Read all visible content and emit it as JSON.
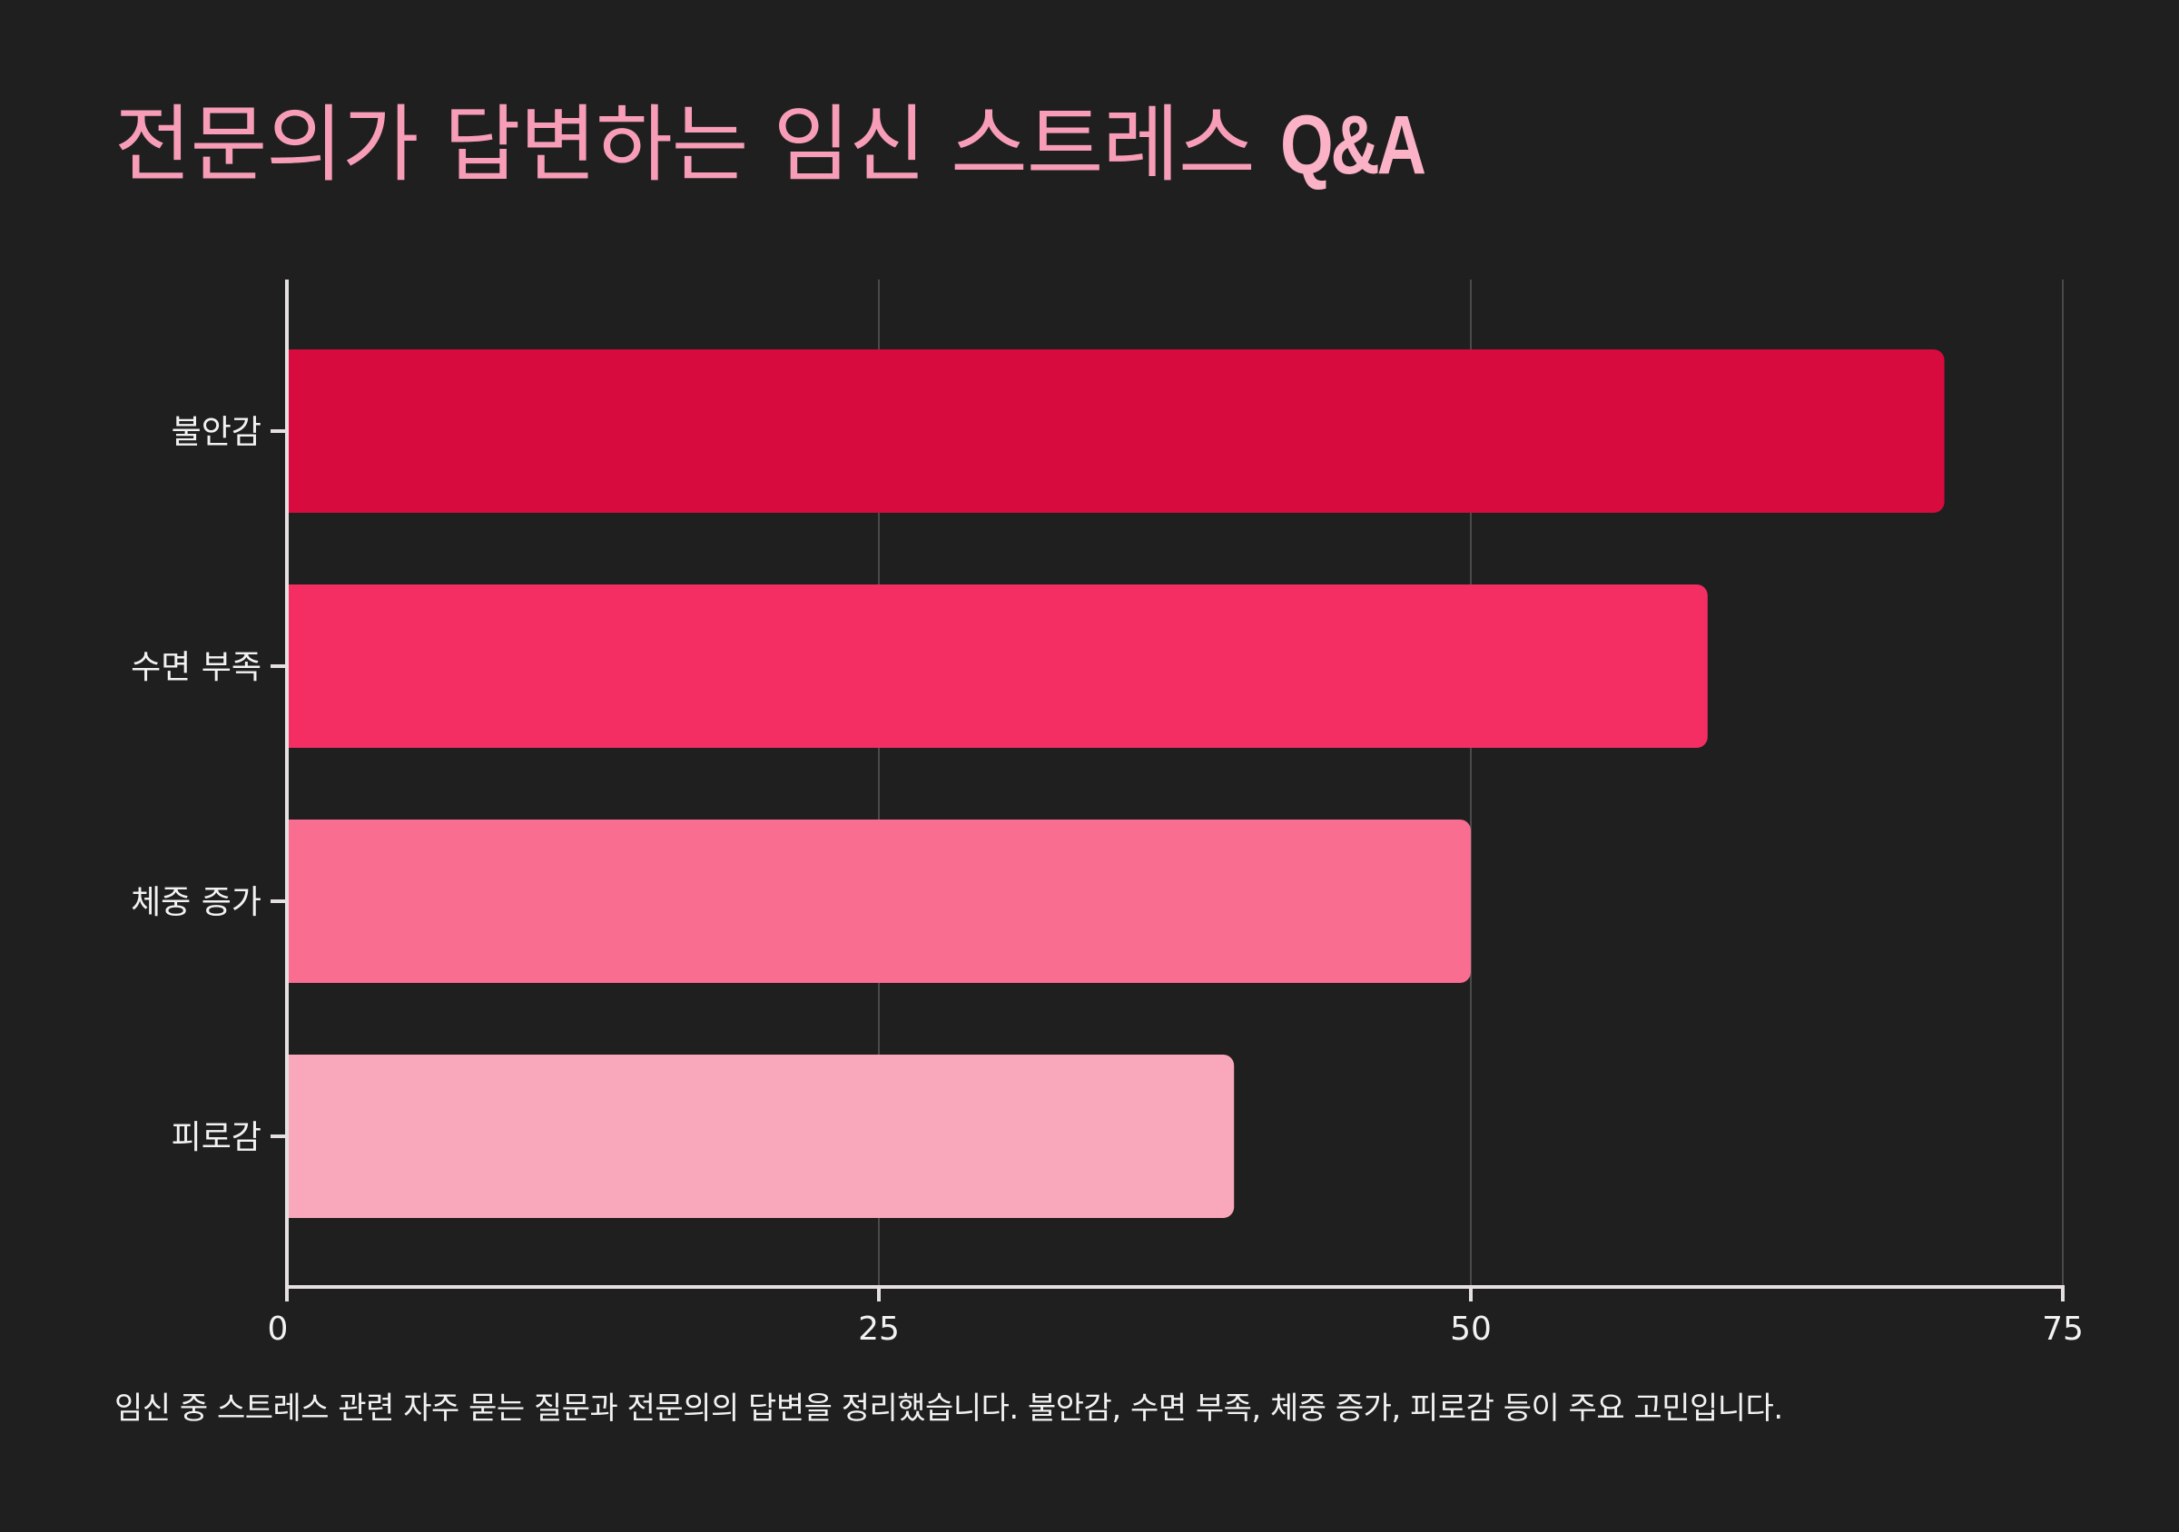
{
  "header": {
    "title_main": "전문의가 답변하는 임신 스트레스",
    "title_accent": "Q&A"
  },
  "caption": "임신 중 스트레스 관련 자주 묻는 질문과 전문의의 답변을 정리했습니다. 불안감, 수면 부족, 체중 증가, 피로감 등이 주요 고민입니다.",
  "colors": {
    "background": "#1f1f1f",
    "title": "#f79db7",
    "axis": "#e6dfe1",
    "grid": "#4a4a4a",
    "text": "#f2f2f2"
  },
  "chart_data": {
    "type": "bar",
    "orientation": "horizontal",
    "title": "",
    "xlabel": "",
    "ylabel": "",
    "categories": [
      "불안감",
      "수면 부족",
      "체중 증가",
      "피로감"
    ],
    "values": [
      70,
      60,
      50,
      40
    ],
    "bar_colors": [
      "#d80b3f",
      "#f42e62",
      "#f96d90",
      "#f9a8bb"
    ],
    "xlim": [
      0,
      75
    ],
    "x_ticks": [
      0,
      25,
      50,
      75
    ],
    "x_tick_labels": [
      "0",
      "25",
      "50",
      "75"
    ],
    "grid": true,
    "legend": "none"
  }
}
